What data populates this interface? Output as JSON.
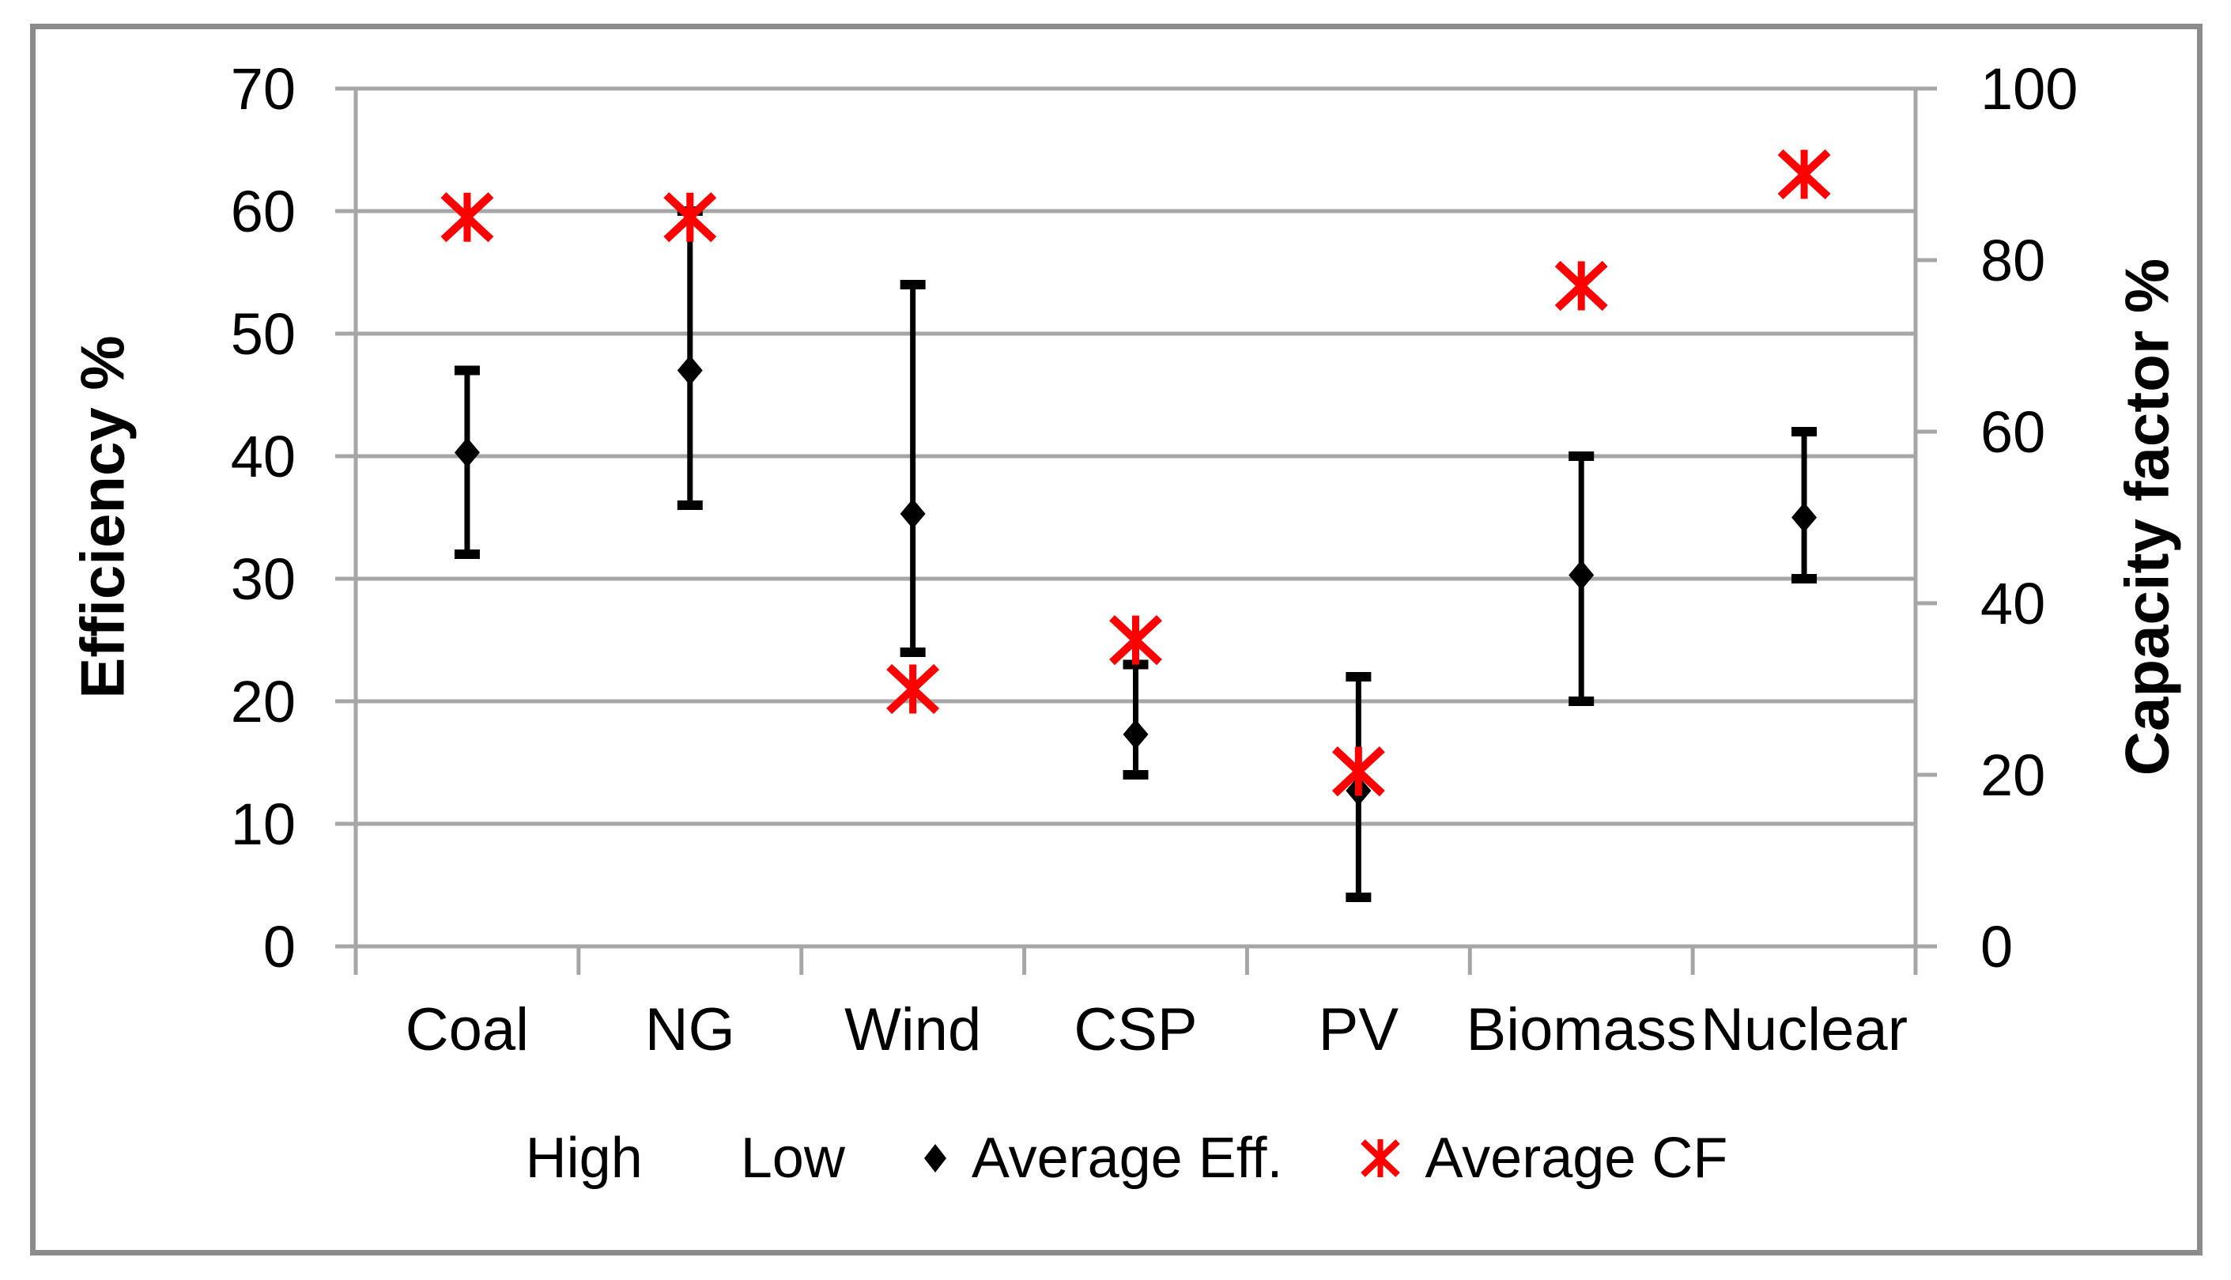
{
  "chart_data": {
    "type": "scatter",
    "title": "",
    "categories": [
      "Coal",
      "NG",
      "Wind",
      "CSP",
      "PV",
      "Biomass",
      "Nuclear"
    ],
    "left_axis": {
      "label": "Efficiency %",
      "min": 0,
      "max": 70,
      "ticks": [
        0,
        10,
        20,
        30,
        40,
        50,
        60,
        70
      ]
    },
    "right_axis": {
      "label": "Capacity factor %",
      "min": 0,
      "max": 100,
      "ticks": [
        0,
        20,
        40,
        60,
        80,
        100
      ]
    },
    "series": [
      {
        "name": "High",
        "axis": "left",
        "marker": "cap",
        "values": [
          47,
          60,
          54,
          23,
          22,
          40,
          42
        ]
      },
      {
        "name": "Low",
        "axis": "left",
        "marker": "cap",
        "values": [
          32,
          36,
          24,
          14,
          4,
          20,
          30
        ]
      },
      {
        "name": "Average Eff.",
        "axis": "left",
        "marker": "diamond",
        "values": [
          40.3,
          47,
          35.3,
          17.3,
          12.7,
          30.3,
          35
        ]
      },
      {
        "name": "Average CF",
        "axis": "right",
        "marker": "red-asterisk",
        "values": [
          85,
          85,
          30,
          35.7,
          20.4,
          77,
          90
        ]
      }
    ],
    "error_bars": {
      "note": "vertical line connects Low to High at each category, black caps at ends"
    },
    "legend": [
      {
        "label": "High",
        "marker": "dash"
      },
      {
        "label": "Low",
        "marker": "dash"
      },
      {
        "label": "Average Eff.",
        "marker": "diamond"
      },
      {
        "label": "Average CF",
        "marker": "red-asterisk"
      }
    ],
    "grid": true,
    "legend_position": "bottom",
    "colors": {
      "marker_black": "#000000",
      "average_cf_red": "#FF0000",
      "gridline": "#A6A6A6",
      "axis_line": "#A6A6A6",
      "outer_border": "#8C8C8C",
      "text": "#000000",
      "background": "#FFFFFF"
    }
  }
}
